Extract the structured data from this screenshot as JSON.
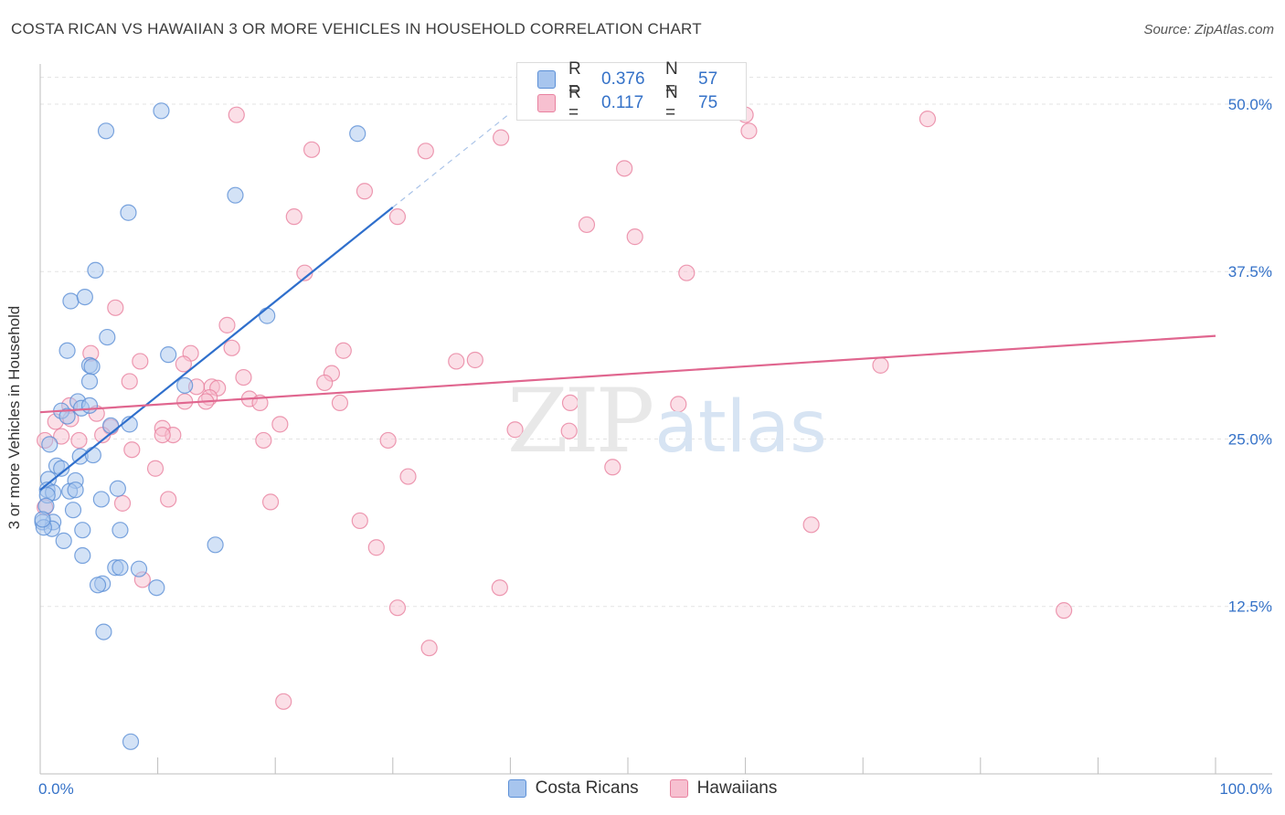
{
  "header": {
    "title": "COSTA RICAN VS HAWAIIAN 3 OR MORE VEHICLES IN HOUSEHOLD CORRELATION CHART",
    "source": "Source: ZipAtlas.com"
  },
  "watermark": {
    "zip": "ZIP",
    "atlas": "atlas"
  },
  "legend": {
    "rows": [
      {
        "r_label": "R =",
        "r_value": "0.376",
        "n_label": "N =",
        "n_value": "57",
        "color": "#a7c5ee",
        "border": "#5b8fd6"
      },
      {
        "r_label": "R =",
        "r_value": "0.117",
        "n_label": "N =",
        "n_value": "75",
        "color": "#f7c0d0",
        "border": "#e8819f"
      }
    ]
  },
  "bottom_legend": [
    {
      "label": "Costa Ricans",
      "color": "#a7c5ee",
      "border": "#5b8fd6"
    },
    {
      "label": "Hawaiians",
      "color": "#f7c0d0",
      "border": "#e8819f"
    }
  ],
  "chart_data": {
    "type": "scatter",
    "title": "COSTA RICAN VS HAWAIIAN 3 OR MORE VEHICLES IN HOUSEHOLD CORRELATION CHART",
    "xlabel": "",
    "ylabel": "3 or more Vehicles in Household",
    "xlim": [
      0,
      100
    ],
    "ylim": [
      0,
      53
    ],
    "x_tick_labels": [
      "0.0%",
      "100.0%"
    ],
    "y_ticks": [
      {
        "value": 12.5,
        "label": "12.5%"
      },
      {
        "value": 25.0,
        "label": "25.0%"
      },
      {
        "value": 37.5,
        "label": "37.5%"
      },
      {
        "value": 50.0,
        "label": "50.0%"
      }
    ],
    "series": [
      {
        "name": "Costa Ricans",
        "color": "#a7c5ee",
        "stroke": "#5b8fd6",
        "trend": {
          "x0": 0,
          "y0": 21.2,
          "x1": 30,
          "y1": 42.3,
          "dash_to_x": 40,
          "line_color": "#2f6fcc"
        },
        "points": [
          [
            10.3,
            49.5
          ],
          [
            5.6,
            48.0
          ],
          [
            27.0,
            47.8
          ],
          [
            16.6,
            43.2
          ],
          [
            7.5,
            41.9
          ],
          [
            4.7,
            37.6
          ],
          [
            2.6,
            35.3
          ],
          [
            3.8,
            35.6
          ],
          [
            19.3,
            34.2
          ],
          [
            5.7,
            32.6
          ],
          [
            2.3,
            31.6
          ],
          [
            10.9,
            31.3
          ],
          [
            4.2,
            30.5
          ],
          [
            4.4,
            30.4
          ],
          [
            4.2,
            29.3
          ],
          [
            12.3,
            29.0
          ],
          [
            3.2,
            27.8
          ],
          [
            3.5,
            27.3
          ],
          [
            4.2,
            27.5
          ],
          [
            1.8,
            27.1
          ],
          [
            2.3,
            26.7
          ],
          [
            7.6,
            26.1
          ],
          [
            6.0,
            26.0
          ],
          [
            0.8,
            24.6
          ],
          [
            3.4,
            23.7
          ],
          [
            4.5,
            23.8
          ],
          [
            1.4,
            23.0
          ],
          [
            1.8,
            22.8
          ],
          [
            0.7,
            22.0
          ],
          [
            3.0,
            21.9
          ],
          [
            0.6,
            21.2
          ],
          [
            1.1,
            21.0
          ],
          [
            2.5,
            21.1
          ],
          [
            3.0,
            21.2
          ],
          [
            6.6,
            21.3
          ],
          [
            0.6,
            20.8
          ],
          [
            5.2,
            20.5
          ],
          [
            0.5,
            20.0
          ],
          [
            2.8,
            19.7
          ],
          [
            1.1,
            18.8
          ],
          [
            0.2,
            18.8
          ],
          [
            1.0,
            18.3
          ],
          [
            0.3,
            18.4
          ],
          [
            3.6,
            18.2
          ],
          [
            6.8,
            18.2
          ],
          [
            2.0,
            17.4
          ],
          [
            14.9,
            17.1
          ],
          [
            3.6,
            16.3
          ],
          [
            6.4,
            15.4
          ],
          [
            6.8,
            15.4
          ],
          [
            8.4,
            15.3
          ],
          [
            5.3,
            14.2
          ],
          [
            4.9,
            14.1
          ],
          [
            9.9,
            13.9
          ],
          [
            5.4,
            10.6
          ],
          [
            7.7,
            2.4
          ],
          [
            0.2,
            19.0
          ]
        ]
      },
      {
        "name": "Hawaiians",
        "color": "#f7c0d0",
        "stroke": "#e8819f",
        "trend": {
          "x0": 0,
          "y0": 27.0,
          "x1": 100,
          "y1": 32.7,
          "line_color": "#e0668f"
        },
        "points": [
          [
            16.7,
            49.2
          ],
          [
            60.0,
            49.2
          ],
          [
            60.3,
            48.0
          ],
          [
            75.5,
            48.9
          ],
          [
            39.2,
            47.5
          ],
          [
            23.1,
            46.6
          ],
          [
            32.8,
            46.5
          ],
          [
            49.7,
            45.2
          ],
          [
            27.6,
            43.5
          ],
          [
            21.6,
            41.6
          ],
          [
            30.4,
            41.6
          ],
          [
            46.5,
            41.0
          ],
          [
            50.6,
            40.1
          ],
          [
            22.5,
            37.4
          ],
          [
            55.0,
            37.4
          ],
          [
            6.4,
            34.8
          ],
          [
            15.9,
            33.5
          ],
          [
            16.3,
            31.8
          ],
          [
            25.8,
            31.6
          ],
          [
            12.8,
            31.4
          ],
          [
            4.3,
            31.4
          ],
          [
            8.5,
            30.8
          ],
          [
            35.4,
            30.8
          ],
          [
            37.0,
            30.9
          ],
          [
            71.5,
            30.5
          ],
          [
            12.2,
            30.6
          ],
          [
            24.8,
            29.9
          ],
          [
            17.3,
            29.6
          ],
          [
            24.2,
            29.2
          ],
          [
            7.6,
            29.3
          ],
          [
            13.3,
            28.9
          ],
          [
            14.6,
            28.9
          ],
          [
            15.1,
            28.8
          ],
          [
            14.4,
            28.1
          ],
          [
            17.8,
            28.0
          ],
          [
            14.1,
            27.8
          ],
          [
            12.3,
            27.8
          ],
          [
            18.7,
            27.7
          ],
          [
            25.5,
            27.7
          ],
          [
            45.1,
            27.7
          ],
          [
            54.3,
            27.6
          ],
          [
            2.5,
            27.5
          ],
          [
            4.8,
            26.9
          ],
          [
            2.6,
            26.5
          ],
          [
            1.3,
            26.3
          ],
          [
            20.4,
            26.1
          ],
          [
            6.0,
            25.9
          ],
          [
            10.4,
            25.8
          ],
          [
            40.4,
            25.7
          ],
          [
            45.0,
            25.6
          ],
          [
            5.3,
            25.3
          ],
          [
            11.3,
            25.3
          ],
          [
            10.4,
            25.3
          ],
          [
            1.8,
            25.2
          ],
          [
            3.3,
            24.9
          ],
          [
            0.4,
            24.9
          ],
          [
            19.0,
            24.9
          ],
          [
            29.6,
            24.9
          ],
          [
            7.8,
            24.2
          ],
          [
            9.8,
            22.8
          ],
          [
            48.7,
            22.9
          ],
          [
            31.3,
            22.2
          ],
          [
            10.9,
            20.5
          ],
          [
            7.0,
            20.2
          ],
          [
            19.6,
            20.3
          ],
          [
            0.4,
            19.9
          ],
          [
            27.2,
            18.9
          ],
          [
            65.6,
            18.6
          ],
          [
            28.6,
            16.9
          ],
          [
            8.7,
            14.5
          ],
          [
            39.1,
            13.9
          ],
          [
            30.4,
            12.4
          ],
          [
            87.1,
            12.2
          ],
          [
            33.1,
            9.4
          ],
          [
            20.7,
            5.4
          ]
        ]
      }
    ]
  }
}
